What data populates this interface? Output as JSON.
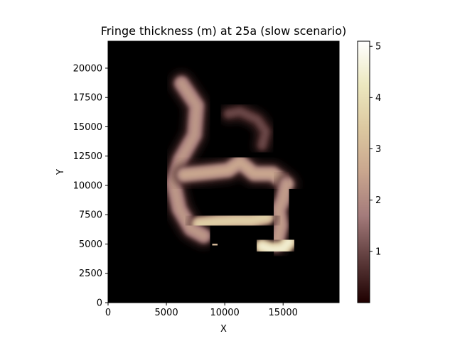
{
  "chart_data": {
    "type": "heatmap",
    "title": "Fringe thickness (m) at 25a (slow scenario)",
    "xlabel": "X",
    "ylabel": "Y",
    "xlim": [
      0,
      19800
    ],
    "ylim": [
      0,
      22300
    ],
    "x_ticks": [
      {
        "value": 0,
        "label": "0"
      },
      {
        "value": 5000,
        "label": "5000"
      },
      {
        "value": 10000,
        "label": "10000"
      },
      {
        "value": 15000,
        "label": "15000"
      }
    ],
    "y_ticks": [
      {
        "value": 0,
        "label": "0"
      },
      {
        "value": 2500,
        "label": "2500"
      },
      {
        "value": 5000,
        "label": "5000"
      },
      {
        "value": 7500,
        "label": "7500"
      },
      {
        "value": 10000,
        "label": "10000"
      },
      {
        "value": 12500,
        "label": "12500"
      },
      {
        "value": 15000,
        "label": "15000"
      },
      {
        "value": 17500,
        "label": "17500"
      },
      {
        "value": 20000,
        "label": "20000"
      }
    ],
    "colorbar": {
      "cmap": "pink",
      "vmin": 0.0,
      "vmax": 5.1,
      "ticks": [
        {
          "value": 1,
          "label": "1"
        },
        {
          "value": 2,
          "label": "2"
        },
        {
          "value": 3,
          "label": "3"
        },
        {
          "value": 4,
          "label": "4"
        },
        {
          "value": 5,
          "label": "5"
        }
      ],
      "stops": [
        "#1e0000",
        "#5e3c3c",
        "#a47b7b",
        "#c9a68e",
        "#dcc8a0",
        "#ece8bf",
        "#ffffff"
      ]
    },
    "field": {
      "background_value": 0,
      "regions": [
        {
          "name": "west-arm",
          "value": 2.3,
          "path": [
            [
              6300,
              18700
            ],
            [
              7600,
              16800
            ],
            [
              7400,
              14300
            ],
            [
              6200,
              12200
            ],
            [
              5600,
              10200
            ],
            [
              6100,
              8000
            ],
            [
              7100,
              6300
            ],
            [
              8200,
              5700
            ]
          ]
        },
        {
          "name": "north-band",
          "value": 2.6,
          "path": [
            [
              6500,
              10900
            ],
            [
              8500,
              11100
            ],
            [
              10300,
              11300
            ],
            [
              11300,
              12000
            ],
            [
              12500,
              11000
            ],
            [
              14100,
              11000
            ],
            [
              15300,
              10100
            ]
          ]
        },
        {
          "name": "east-arm",
          "value": 2.4,
          "path": [
            [
              15300,
              10100
            ],
            [
              15000,
              8800
            ],
            [
              14600,
              7900
            ],
            [
              14800,
              6600
            ],
            [
              14400,
              5000
            ]
          ]
        },
        {
          "name": "south-band",
          "value": 3.6,
          "path": [
            [
              7800,
              6700
            ],
            [
              9500,
              6900
            ],
            [
              11000,
              7000
            ],
            [
              12200,
              7000
            ],
            [
              13600,
              7300
            ]
          ]
        },
        {
          "name": "south-east-lobe",
          "value": 4.5,
          "path": [
            [
              13200,
              4800
            ],
            [
              14000,
              4500
            ],
            [
              15000,
              4600
            ],
            [
              15500,
              5200
            ]
          ]
        },
        {
          "name": "south-west-blob",
          "value": 3.2,
          "path": [
            [
              9000,
              4900
            ],
            [
              9300,
              5000
            ]
          ]
        },
        {
          "name": "north-east-patch",
          "value": 1.1,
          "path": [
            [
              10300,
              16100
            ],
            [
              11300,
              16300
            ],
            [
              12800,
              15600
            ],
            [
              13500,
              14600
            ],
            [
              13200,
              13400
            ]
          ]
        }
      ]
    }
  }
}
